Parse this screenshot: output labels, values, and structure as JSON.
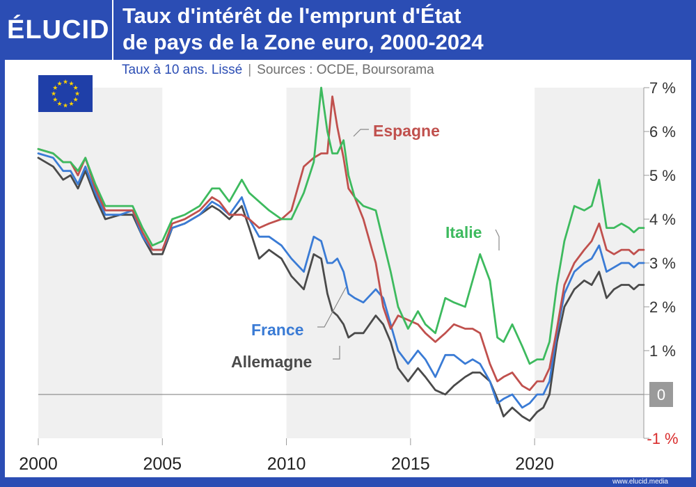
{
  "header": {
    "logo": "ÉLUCID",
    "title_line1": "Taux d'intérêt de l'emprunt d'État",
    "title_line2": "de pays de la Zone euro, 2000-2024",
    "subtitle": "Taux à 10 ans. Lissé",
    "separator": "|",
    "sources": "Sources : OCDE, Boursorama"
  },
  "footer": {
    "site": "www.elucid.media"
  },
  "colors": {
    "brand_blue": "#2b4db4",
    "italie": "#3dba5e",
    "espagne": "#c0504d",
    "france": "#3a7bd5",
    "allemagne": "#4a4a4a",
    "negative_tick": "#d92b2b"
  },
  "chart_data": {
    "type": "line",
    "title": "Taux d'intérêt de l'emprunt d'État de pays de la Zone euro, 2000-2024",
    "xlabel": "",
    "ylabel": "",
    "xlim": [
      2000,
      2024.4
    ],
    "ylim": [
      -1,
      7
    ],
    "x_ticks": [
      "2000",
      "2005",
      "2010",
      "2015",
      "2020"
    ],
    "y_ticks": [
      "7 %",
      "6 %",
      "5 %",
      "4 %",
      "3 %",
      "2 %",
      "1 %",
      "0",
      "-1 %"
    ],
    "grid": false,
    "shaded_periods": [
      [
        2000,
        2005
      ],
      [
        2010,
        2015
      ],
      [
        2020,
        2024.4
      ]
    ],
    "series": [
      {
        "name": "Italie",
        "color": "#3dba5e",
        "x": [
          2000,
          2000.6,
          2001,
          2001.3,
          2001.6,
          2001.9,
          2002.3,
          2002.7,
          2003.3,
          2003.8,
          2004.2,
          2004.6,
          2005,
          2005.4,
          2005.9,
          2006.5,
          2007,
          2007.3,
          2007.7,
          2008.2,
          2008.5,
          2008.9,
          2009.3,
          2009.8,
          2010.2,
          2010.7,
          2011.1,
          2011.4,
          2011.65,
          2011.85,
          2012.05,
          2012.3,
          2012.5,
          2012.75,
          2013.1,
          2013.6,
          2013.9,
          2014.2,
          2014.5,
          2014.9,
          2015.3,
          2015.6,
          2016,
          2016.4,
          2016.75,
          2017.2,
          2017.5,
          2017.8,
          2018.2,
          2018.5,
          2018.75,
          2019.1,
          2019.5,
          2019.8,
          2020.1,
          2020.35,
          2020.6,
          2020.9,
          2021.2,
          2021.6,
          2022.0,
          2022.3,
          2022.6,
          2022.9,
          2023.2,
          2023.5,
          2023.8,
          2024.0,
          2024.2,
          2024.4
        ],
        "values": [
          5.6,
          5.5,
          5.3,
          5.3,
          5.1,
          5.4,
          4.8,
          4.3,
          4.3,
          4.3,
          3.8,
          3.4,
          3.5,
          4.0,
          4.1,
          4.3,
          4.7,
          4.7,
          4.4,
          4.9,
          4.6,
          4.4,
          4.2,
          4.0,
          4.0,
          4.6,
          5.3,
          7.0,
          6.0,
          5.5,
          5.5,
          5.8,
          5.0,
          4.5,
          4.3,
          4.2,
          3.5,
          2.8,
          2.0,
          1.5,
          1.9,
          1.6,
          1.4,
          2.2,
          2.1,
          2.0,
          2.6,
          3.2,
          2.6,
          1.3,
          1.2,
          1.6,
          1.1,
          0.7,
          0.8,
          0.8,
          1.2,
          2.5,
          3.5,
          4.3,
          4.2,
          4.3,
          4.9,
          3.8,
          3.8,
          3.9,
          3.8,
          3.7,
          3.8,
          3.8
        ]
      },
      {
        "name": "Espagne",
        "color": "#c0504d",
        "x": [
          2000,
          2000.6,
          2001,
          2001.3,
          2001.6,
          2001.9,
          2002.3,
          2002.7,
          2003.3,
          2003.8,
          2004.2,
          2004.6,
          2005,
          2005.4,
          2005.9,
          2006.5,
          2007,
          2007.3,
          2007.7,
          2008.2,
          2008.5,
          2008.9,
          2009.3,
          2009.8,
          2010.2,
          2010.7,
          2011.1,
          2011.4,
          2011.65,
          2011.85,
          2012.05,
          2012.3,
          2012.5,
          2012.75,
          2013.1,
          2013.6,
          2013.9,
          2014.2,
          2014.5,
          2014.9,
          2015.3,
          2015.6,
          2016,
          2016.4,
          2016.75,
          2017.2,
          2017.5,
          2017.8,
          2018.2,
          2018.5,
          2018.75,
          2019.1,
          2019.5,
          2019.8,
          2020.1,
          2020.35,
          2020.6,
          2020.9,
          2021.2,
          2021.6,
          2022.0,
          2022.3,
          2022.6,
          2022.9,
          2023.2,
          2023.5,
          2023.8,
          2024.0,
          2024.2,
          2024.4
        ],
        "values": [
          5.6,
          5.5,
          5.3,
          5.3,
          5.0,
          5.4,
          4.7,
          4.2,
          4.2,
          4.2,
          3.7,
          3.3,
          3.3,
          3.9,
          4.0,
          4.2,
          4.5,
          4.4,
          4.1,
          4.1,
          4.0,
          3.8,
          3.9,
          4.0,
          4.2,
          5.2,
          5.4,
          5.5,
          5.5,
          6.8,
          6.1,
          5.4,
          4.7,
          4.5,
          4.0,
          3.0,
          2.0,
          1.5,
          1.8,
          1.7,
          1.6,
          1.4,
          1.2,
          1.4,
          1.6,
          1.5,
          1.5,
          1.4,
          0.7,
          0.3,
          0.4,
          0.5,
          0.2,
          0.1,
          0.3,
          0.3,
          0.6,
          1.5,
          2.5,
          3.0,
          3.3,
          3.5,
          3.9,
          3.3,
          3.2,
          3.3,
          3.3,
          3.2,
          3.3,
          3.3
        ]
      },
      {
        "name": "France",
        "color": "#3a7bd5",
        "x": [
          2000,
          2000.6,
          2001,
          2001.3,
          2001.6,
          2001.9,
          2002.3,
          2002.7,
          2003.3,
          2003.8,
          2004.2,
          2004.6,
          2005,
          2005.4,
          2005.9,
          2006.5,
          2007,
          2007.3,
          2007.7,
          2008.2,
          2008.5,
          2008.9,
          2009.3,
          2009.8,
          2010.2,
          2010.7,
          2011.1,
          2011.4,
          2011.65,
          2011.85,
          2012.05,
          2012.3,
          2012.5,
          2012.75,
          2013.1,
          2013.6,
          2013.9,
          2014.2,
          2014.5,
          2014.9,
          2015.3,
          2015.6,
          2016,
          2016.4,
          2016.75,
          2017.2,
          2017.5,
          2017.8,
          2018.2,
          2018.5,
          2018.75,
          2019.1,
          2019.5,
          2019.8,
          2020.1,
          2020.35,
          2020.6,
          2020.9,
          2021.2,
          2021.6,
          2022.0,
          2022.3,
          2022.6,
          2022.9,
          2023.2,
          2023.5,
          2023.8,
          2024.0,
          2024.2,
          2024.4
        ],
        "values": [
          5.5,
          5.4,
          5.1,
          5.1,
          4.8,
          5.2,
          4.6,
          4.1,
          4.1,
          4.2,
          3.6,
          3.3,
          3.3,
          3.8,
          3.9,
          4.1,
          4.4,
          4.3,
          4.1,
          4.5,
          4.0,
          3.6,
          3.6,
          3.4,
          3.1,
          2.8,
          3.6,
          3.5,
          3.0,
          3.0,
          3.1,
          2.8,
          2.3,
          2.2,
          2.1,
          2.4,
          2.2,
          1.6,
          1.0,
          0.7,
          1.0,
          0.8,
          0.4,
          0.9,
          0.9,
          0.7,
          0.8,
          0.7,
          0.3,
          -0.2,
          -0.1,
          0.0,
          -0.3,
          -0.2,
          0.0,
          0.0,
          0.3,
          1.4,
          2.3,
          2.8,
          3.0,
          3.1,
          3.4,
          2.8,
          2.9,
          3.0,
          3.0,
          2.9,
          3.0,
          3.0
        ]
      },
      {
        "name": "Allemagne",
        "color": "#4a4a4a",
        "x": [
          2000,
          2000.6,
          2001,
          2001.3,
          2001.6,
          2001.9,
          2002.3,
          2002.7,
          2003.3,
          2003.8,
          2004.2,
          2004.6,
          2005,
          2005.4,
          2005.9,
          2006.5,
          2007,
          2007.3,
          2007.7,
          2008.2,
          2008.5,
          2008.9,
          2009.3,
          2009.8,
          2010.2,
          2010.7,
          2011.1,
          2011.4,
          2011.65,
          2011.85,
          2012.05,
          2012.3,
          2012.5,
          2012.75,
          2013.1,
          2013.6,
          2013.9,
          2014.2,
          2014.5,
          2014.9,
          2015.3,
          2015.6,
          2016,
          2016.4,
          2016.75,
          2017.2,
          2017.5,
          2017.8,
          2018.2,
          2018.5,
          2018.75,
          2019.1,
          2019.5,
          2019.8,
          2020.1,
          2020.35,
          2020.6,
          2020.9,
          2021.2,
          2021.6,
          2022.0,
          2022.3,
          2022.6,
          2022.9,
          2023.2,
          2023.5,
          2023.8,
          2024.0,
          2024.2,
          2024.4
        ],
        "values": [
          5.4,
          5.2,
          4.9,
          5.0,
          4.7,
          5.1,
          4.5,
          4.0,
          4.1,
          4.1,
          3.6,
          3.2,
          3.2,
          3.8,
          3.9,
          4.1,
          4.3,
          4.2,
          4.0,
          4.3,
          3.8,
          3.1,
          3.3,
          3.1,
          2.7,
          2.4,
          3.2,
          3.1,
          2.3,
          1.9,
          1.8,
          1.6,
          1.3,
          1.4,
          1.4,
          1.8,
          1.6,
          1.2,
          0.6,
          0.3,
          0.6,
          0.4,
          0.1,
          0.0,
          0.2,
          0.4,
          0.5,
          0.5,
          0.3,
          -0.1,
          -0.5,
          -0.3,
          -0.5,
          -0.6,
          -0.4,
          -0.3,
          0.0,
          1.2,
          2.0,
          2.4,
          2.6,
          2.5,
          2.8,
          2.2,
          2.4,
          2.5,
          2.5,
          2.4,
          2.5,
          2.5
        ]
      }
    ],
    "series_labels": {
      "espagne": "Espagne",
      "italie": "Italie",
      "france": "France",
      "allemagne": "Allemagne"
    }
  }
}
